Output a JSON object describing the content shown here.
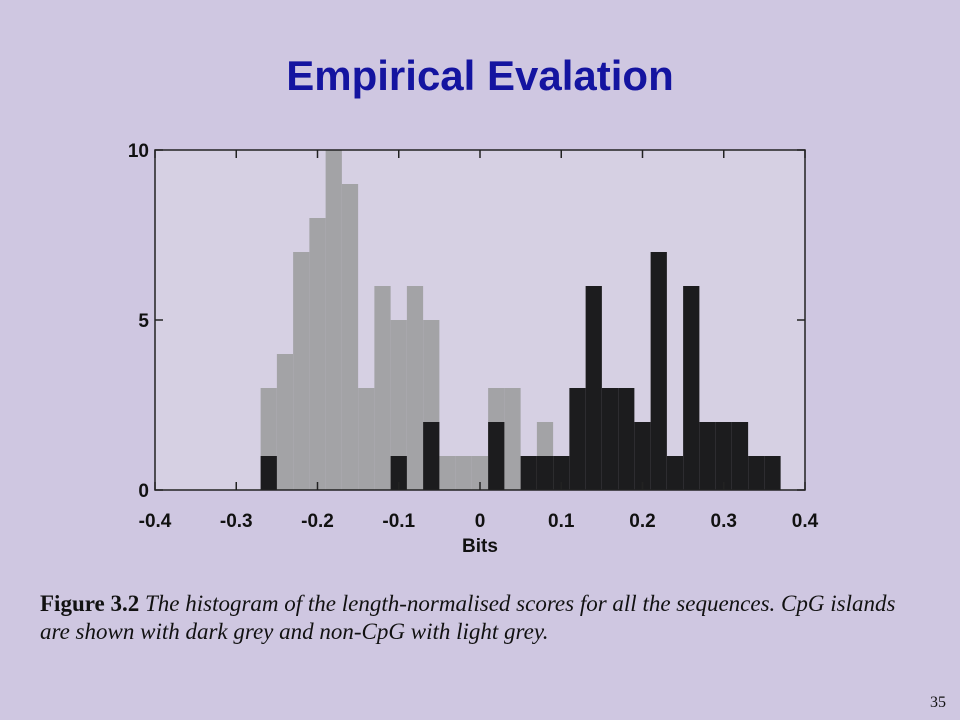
{
  "title": "Empirical Evalation",
  "chart_data": {
    "type": "histogram",
    "xlabel": "Bits",
    "bins": [
      -0.27,
      -0.25,
      -0.23,
      -0.21,
      -0.19,
      -0.17,
      -0.15,
      -0.13,
      -0.11,
      -0.09,
      -0.07,
      -0.05,
      -0.03,
      -0.01,
      0.01,
      0.03,
      0.05,
      0.07,
      0.09,
      0.11,
      0.13,
      0.15,
      0.17,
      0.19,
      0.21,
      0.23,
      0.25,
      0.27,
      0.29,
      0.31,
      0.33,
      0.35,
      0.37
    ],
    "series": [
      {
        "name": "non-CpG",
        "color": "#a3a3a6",
        "values": [
          3,
          4,
          7,
          8,
          10,
          9,
          3,
          6,
          5,
          6,
          5,
          1,
          1,
          1,
          3,
          3,
          1,
          2,
          0,
          0,
          0,
          0,
          0,
          0,
          0,
          0,
          0,
          0,
          0,
          0,
          0,
          0
        ]
      },
      {
        "name": "CpG islands",
        "color": "#1c1c1e",
        "values": [
          1,
          0,
          0,
          0,
          0,
          0,
          0,
          0,
          1,
          0,
          2,
          0,
          0,
          0,
          2,
          0,
          1,
          1,
          1,
          3,
          6,
          3,
          3,
          2,
          7,
          1,
          6,
          2,
          2,
          2,
          1,
          1
        ]
      }
    ],
    "xlim": [
      -0.4,
      0.4
    ],
    "xticks": [
      -0.4,
      -0.3,
      -0.2,
      -0.1,
      0,
      0.1,
      0.2,
      0.3,
      0.4
    ],
    "ylim": [
      0,
      10
    ],
    "yticks": [
      0,
      5,
      10
    ]
  },
  "caption": {
    "label": "Figure 3.2",
    "text": "The histogram of the length-normalised scores for all the sequences. CpG islands are shown with dark grey and non-CpG with light grey."
  },
  "page_number": "35"
}
